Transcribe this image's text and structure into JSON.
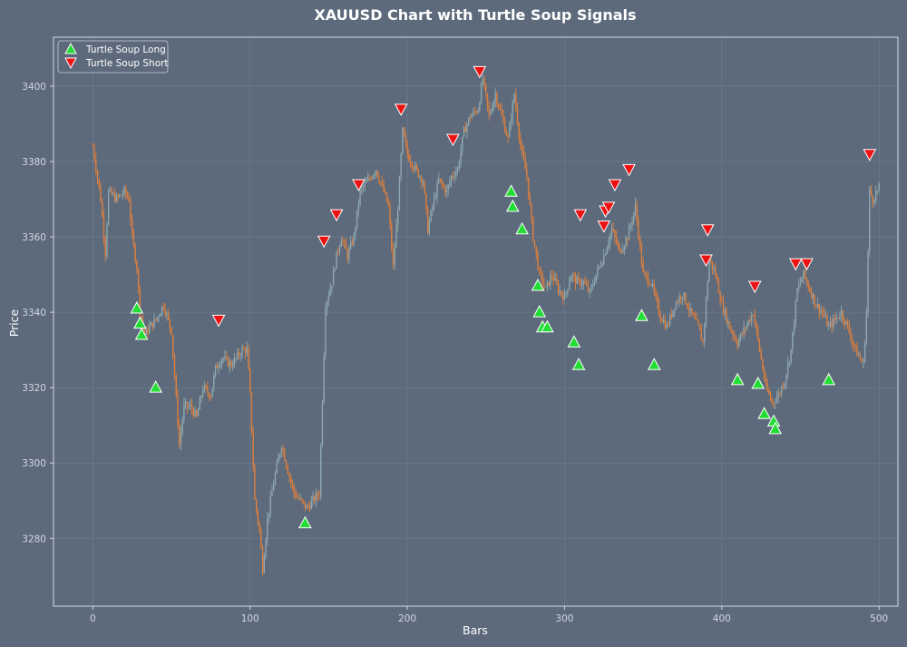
{
  "chart_data": {
    "type": "candlestick",
    "title": "XAUUSD Chart  with Turtle Soup Signals",
    "xlabel": "Bars",
    "ylabel": "Price",
    "xlim": [
      -25,
      512
    ],
    "ylim": [
      3262,
      3413
    ],
    "x_ticks": [
      0,
      100,
      200,
      300,
      400,
      500
    ],
    "y_ticks": [
      3280,
      3300,
      3320,
      3340,
      3360,
      3380,
      3400
    ],
    "grid": true,
    "legend_position": "top-left",
    "colors": {
      "background": "#5c6a7c",
      "bullish": "#8fa9ad",
      "bearish": "#e07f3c",
      "long_marker": "#22dd33",
      "short_marker": "#ee1111",
      "grid": "#7b8899",
      "frame": "#d5dbe3"
    },
    "price_path": [
      [
        0,
        3384
      ],
      [
        5,
        3370
      ],
      [
        8,
        3356
      ],
      [
        10,
        3372
      ],
      [
        15,
        3370
      ],
      [
        20,
        3372
      ],
      [
        23,
        3370
      ],
      [
        25,
        3360
      ],
      [
        28,
        3352
      ],
      [
        30,
        3340
      ],
      [
        33,
        3334
      ],
      [
        36,
        3336
      ],
      [
        40,
        3338
      ],
      [
        45,
        3342
      ],
      [
        50,
        3335
      ],
      [
        55,
        3305
      ],
      [
        58,
        3315
      ],
      [
        62,
        3315
      ],
      [
        66,
        3312
      ],
      [
        70,
        3320
      ],
      [
        75,
        3318
      ],
      [
        78,
        3325
      ],
      [
        82,
        3328
      ],
      [
        88,
        3326
      ],
      [
        95,
        3330
      ],
      [
        98,
        3330
      ],
      [
        100,
        3318
      ],
      [
        103,
        3290
      ],
      [
        106,
        3282
      ],
      [
        108,
        3272
      ],
      [
        111,
        3285
      ],
      [
        115,
        3295
      ],
      [
        120,
        3305
      ],
      [
        124,
        3298
      ],
      [
        128,
        3292
      ],
      [
        132,
        3290
      ],
      [
        136,
        3288
      ],
      [
        140,
        3290
      ],
      [
        144,
        3292
      ],
      [
        148,
        3342
      ],
      [
        152,
        3348
      ],
      [
        155,
        3355
      ],
      [
        158,
        3360
      ],
      [
        162,
        3355
      ],
      [
        166,
        3360
      ],
      [
        170,
        3372
      ],
      [
        175,
        3375
      ],
      [
        180,
        3378
      ],
      [
        185,
        3372
      ],
      [
        188,
        3368
      ],
      [
        191,
        3352
      ],
      [
        194,
        3368
      ],
      [
        197,
        3388
      ],
      [
        200,
        3382
      ],
      [
        205,
        3378
      ],
      [
        210,
        3375
      ],
      [
        213,
        3362
      ],
      [
        216,
        3368
      ],
      [
        220,
        3375
      ],
      [
        225,
        3372
      ],
      [
        228,
        3376
      ],
      [
        232,
        3378
      ],
      [
        236,
        3388
      ],
      [
        240,
        3392
      ],
      [
        245,
        3394
      ],
      [
        248,
        3402
      ],
      [
        252,
        3392
      ],
      [
        256,
        3398
      ],
      [
        260,
        3392
      ],
      [
        264,
        3386
      ],
      [
        268,
        3398
      ],
      [
        272,
        3384
      ],
      [
        276,
        3376
      ],
      [
        280,
        3360
      ],
      [
        284,
        3350
      ],
      [
        288,
        3346
      ],
      [
        292,
        3350
      ],
      [
        296,
        3346
      ],
      [
        300,
        3344
      ],
      [
        304,
        3350
      ],
      [
        308,
        3348
      ],
      [
        312,
        3348
      ],
      [
        316,
        3345
      ],
      [
        320,
        3350
      ],
      [
        325,
        3355
      ],
      [
        330,
        3362
      ],
      [
        335,
        3356
      ],
      [
        340,
        3360
      ],
      [
        345,
        3368
      ],
      [
        350,
        3350
      ],
      [
        355,
        3348
      ],
      [
        360,
        3340
      ],
      [
        365,
        3336
      ],
      [
        370,
        3342
      ],
      [
        375,
        3345
      ],
      [
        380,
        3340
      ],
      [
        385,
        3336
      ],
      [
        388,
        3332
      ],
      [
        392,
        3354
      ],
      [
        396,
        3350
      ],
      [
        400,
        3342
      ],
      [
        405,
        3336
      ],
      [
        410,
        3332
      ],
      [
        415,
        3336
      ],
      [
        420,
        3340
      ],
      [
        424,
        3330
      ],
      [
        428,
        3320
      ],
      [
        432,
        3316
      ],
      [
        436,
        3318
      ],
      [
        440,
        3322
      ],
      [
        444,
        3330
      ],
      [
        448,
        3346
      ],
      [
        452,
        3350
      ],
      [
        456,
        3346
      ],
      [
        460,
        3342
      ],
      [
        464,
        3340
      ],
      [
        468,
        3336
      ],
      [
        472,
        3338
      ],
      [
        476,
        3340
      ],
      [
        480,
        3336
      ],
      [
        485,
        3330
      ],
      [
        490,
        3326
      ],
      [
        492,
        3340
      ],
      [
        494,
        3372
      ],
      [
        496,
        3370
      ],
      [
        500,
        3373
      ]
    ],
    "series": [
      {
        "name": "Turtle Soup Long",
        "marker": "triangle-up",
        "points": [
          [
            28,
            3341
          ],
          [
            30,
            3337
          ],
          [
            31,
            3334
          ],
          [
            40,
            3320
          ],
          [
            135,
            3284
          ],
          [
            266,
            3372
          ],
          [
            267,
            3368
          ],
          [
            273,
            3362
          ],
          [
            283,
            3347
          ],
          [
            284,
            3340
          ],
          [
            286,
            3336
          ],
          [
            289,
            3336
          ],
          [
            306,
            3332
          ],
          [
            309,
            3326
          ],
          [
            349,
            3339
          ],
          [
            357,
            3326
          ],
          [
            410,
            3322
          ],
          [
            423,
            3321
          ],
          [
            427,
            3313
          ],
          [
            433,
            3311
          ],
          [
            434,
            3309
          ],
          [
            468,
            3322
          ]
        ]
      },
      {
        "name": "Turtle Soup Short",
        "marker": "triangle-down",
        "points": [
          [
            80,
            3338
          ],
          [
            147,
            3359
          ],
          [
            155,
            3366
          ],
          [
            169,
            3374
          ],
          [
            196,
            3394
          ],
          [
            229,
            3386
          ],
          [
            246,
            3404
          ],
          [
            310,
            3366
          ],
          [
            325,
            3363
          ],
          [
            326,
            3367
          ],
          [
            328,
            3368
          ],
          [
            332,
            3374
          ],
          [
            341,
            3378
          ],
          [
            390,
            3354
          ],
          [
            391,
            3362
          ],
          [
            421,
            3347
          ],
          [
            447,
            3353
          ],
          [
            454,
            3353
          ],
          [
            494,
            3382
          ]
        ]
      }
    ]
  }
}
